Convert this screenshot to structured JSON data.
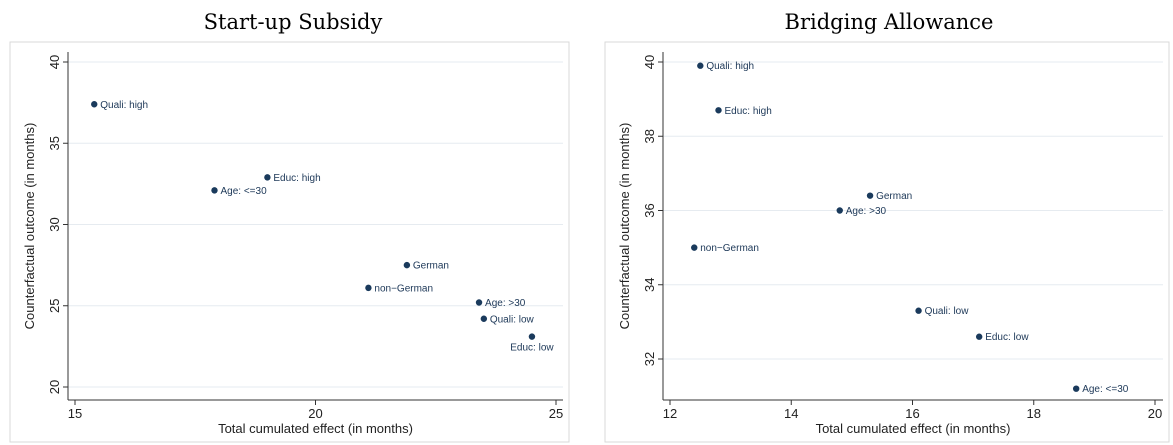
{
  "chart_data": [
    {
      "type": "scatter",
      "title": "Start-up Subsidy",
      "xlabel": "Total cumulated effect (in months)",
      "ylabel": "Counterfactual outcome (in months)",
      "xlim": [
        15,
        25
      ],
      "ylim": [
        20,
        40
      ],
      "xticks": [
        "15",
        "20",
        "25"
      ],
      "yticks": [
        "20",
        "25",
        "30",
        "35",
        "40"
      ],
      "grid": true,
      "marker_color": "#1a3a5c",
      "points": [
        {
          "label": "Quali: high",
          "x": 15.4,
          "y": 37.4,
          "pos": "right"
        },
        {
          "label": "Educ: high",
          "x": 19.0,
          "y": 32.9,
          "pos": "right"
        },
        {
          "label": "Age: <=30",
          "x": 17.9,
          "y": 32.1,
          "pos": "right"
        },
        {
          "label": "German",
          "x": 21.9,
          "y": 27.5,
          "pos": "right"
        },
        {
          "label": "non−German",
          "x": 21.1,
          "y": 26.1,
          "pos": "right"
        },
        {
          "label": "Age: >30",
          "x": 23.4,
          "y": 25.2,
          "pos": "right"
        },
        {
          "label": "Quali: low",
          "x": 23.5,
          "y": 24.2,
          "pos": "right"
        },
        {
          "label": "Educ: low",
          "x": 24.5,
          "y": 23.1,
          "pos": "below"
        }
      ]
    },
    {
      "type": "scatter",
      "title": "Bridging Allowance",
      "xlabel": "Total cumulated effect (in months)",
      "ylabel": "Counterfactual outcome (in months)",
      "xlim": [
        12,
        20
      ],
      "ylim": [
        31,
        40
      ],
      "xticks": [
        "12",
        "14",
        "16",
        "18",
        "20"
      ],
      "yticks": [
        "32",
        "34",
        "36",
        "38",
        "40"
      ],
      "grid": true,
      "marker_color": "#1a3a5c",
      "points": [
        {
          "label": "Quali: high",
          "x": 12.5,
          "y": 39.9,
          "pos": "right"
        },
        {
          "label": "Educ: high",
          "x": 12.8,
          "y": 38.7,
          "pos": "right"
        },
        {
          "label": "German",
          "x": 15.3,
          "y": 36.4,
          "pos": "right"
        },
        {
          "label": "Age: >30",
          "x": 14.8,
          "y": 36.0,
          "pos": "right"
        },
        {
          "label": "non−German",
          "x": 12.4,
          "y": 35.0,
          "pos": "right"
        },
        {
          "label": "Quali: low",
          "x": 16.1,
          "y": 33.3,
          "pos": "right"
        },
        {
          "label": "Educ: low",
          "x": 17.1,
          "y": 32.6,
          "pos": "right"
        },
        {
          "label": "Age: <=30",
          "x": 18.7,
          "y": 31.2,
          "pos": "right"
        }
      ]
    }
  ]
}
